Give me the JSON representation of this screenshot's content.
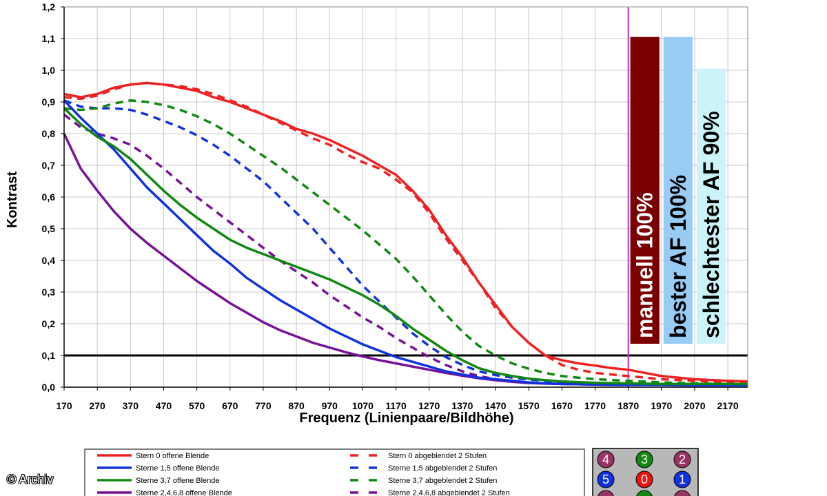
{
  "chart_data": {
    "type": "line",
    "xlabel": "Frequenz (Linienpaare/Bildhöhe)",
    "ylabel": "Kontrast",
    "xlim": [
      170,
      2230
    ],
    "ylim": [
      0,
      1.2
    ],
    "x_ticks": [
      "170",
      "270",
      "370",
      "470",
      "570",
      "670",
      "770",
      "870",
      "970",
      "1070",
      "1170",
      "1270",
      "1370",
      "1470",
      "1570",
      "1670",
      "1770",
      "1870",
      "1970",
      "2070",
      "2170"
    ],
    "y_ticks": [
      "0,0",
      "0,1",
      "0,2",
      "0,3",
      "0,4",
      "0,5",
      "0,6",
      "0,7",
      "0,8",
      "0,9",
      "1,0",
      "1,1",
      "1,2"
    ],
    "grid": true,
    "threshold_line": {
      "y": 0.1,
      "color": "#000000"
    },
    "marker_line": {
      "x": 1870,
      "color": "#cc33cc"
    },
    "bars": [
      {
        "label": "manuell 100%",
        "value": 1.105,
        "color": "#7a0000",
        "text_color": "#ffffff"
      },
      {
        "label": "bester AF 100%",
        "value": 1.105,
        "color": "#99ccf4",
        "text_color": "#000000"
      },
      {
        "label": "schlechtester AF 90%",
        "value": 1.005,
        "color": "#ccf4f8",
        "text_color": "#000000"
      }
    ],
    "series": [
      {
        "name": "Stern 0 offene Blende",
        "color": "#ee2222",
        "dash": false,
        "x": [
          170,
          220,
          270,
          320,
          370,
          420,
          470,
          520,
          570,
          620,
          670,
          720,
          770,
          820,
          870,
          920,
          970,
          1020,
          1070,
          1120,
          1170,
          1220,
          1270,
          1320,
          1370,
          1420,
          1470,
          1520,
          1570,
          1620,
          1670,
          1720,
          1770,
          1820,
          1870,
          1920,
          1970,
          2070,
          2170,
          2230
        ],
        "y": [
          0.925,
          0.915,
          0.925,
          0.945,
          0.955,
          0.96,
          0.955,
          0.945,
          0.935,
          0.915,
          0.9,
          0.88,
          0.86,
          0.84,
          0.815,
          0.8,
          0.78,
          0.755,
          0.73,
          0.7,
          0.67,
          0.62,
          0.56,
          0.48,
          0.41,
          0.33,
          0.26,
          0.19,
          0.14,
          0.1,
          0.085,
          0.075,
          0.068,
          0.06,
          0.055,
          0.045,
          0.035,
          0.025,
          0.02,
          0.018
        ]
      },
      {
        "name": "Sterne 1,5 offene Blende",
        "color": "#1133dd",
        "dash": false,
        "x": [
          170,
          220,
          270,
          320,
          370,
          420,
          470,
          520,
          570,
          620,
          670,
          720,
          770,
          820,
          870,
          920,
          970,
          1020,
          1070,
          1120,
          1170,
          1220,
          1270,
          1320,
          1370,
          1420,
          1470,
          1520,
          1570,
          1620,
          1670,
          1770,
          1870,
          1970,
          2070,
          2170,
          2230
        ],
        "y": [
          0.905,
          0.85,
          0.8,
          0.75,
          0.69,
          0.63,
          0.58,
          0.53,
          0.48,
          0.43,
          0.39,
          0.345,
          0.31,
          0.275,
          0.245,
          0.215,
          0.185,
          0.16,
          0.135,
          0.115,
          0.095,
          0.08,
          0.065,
          0.05,
          0.04,
          0.03,
          0.025,
          0.02,
          0.015,
          0.012,
          0.01,
          0.008,
          0.007,
          0.007,
          0.006,
          0.006,
          0.006
        ]
      },
      {
        "name": "Sterne 3,7 offene Blende",
        "color": "#118811",
        "dash": false,
        "x": [
          170,
          220,
          270,
          320,
          370,
          420,
          470,
          520,
          570,
          620,
          670,
          720,
          770,
          820,
          870,
          920,
          970,
          1020,
          1070,
          1120,
          1170,
          1220,
          1270,
          1320,
          1370,
          1420,
          1470,
          1520,
          1570,
          1620,
          1670,
          1770,
          1870,
          1970,
          2070,
          2170,
          2230
        ],
        "y": [
          0.88,
          0.83,
          0.79,
          0.76,
          0.72,
          0.67,
          0.62,
          0.575,
          0.535,
          0.5,
          0.465,
          0.44,
          0.42,
          0.4,
          0.38,
          0.36,
          0.34,
          0.315,
          0.29,
          0.26,
          0.225,
          0.185,
          0.15,
          0.115,
          0.085,
          0.06,
          0.045,
          0.035,
          0.027,
          0.022,
          0.018,
          0.014,
          0.012,
          0.01,
          0.01,
          0.01,
          0.01
        ]
      },
      {
        "name": "Sterne 2,4,6,8 offene Blende",
        "color": "#771199",
        "dash": false,
        "x": [
          170,
          220,
          270,
          320,
          370,
          420,
          470,
          520,
          570,
          620,
          670,
          720,
          770,
          820,
          870,
          920,
          970,
          1020,
          1070,
          1120,
          1170,
          1220,
          1270,
          1320,
          1370,
          1420,
          1470,
          1520,
          1570,
          1620,
          1670,
          1770,
          1870,
          1970,
          2070,
          2170,
          2230
        ],
        "y": [
          0.8,
          0.69,
          0.62,
          0.555,
          0.5,
          0.455,
          0.415,
          0.375,
          0.335,
          0.3,
          0.265,
          0.235,
          0.205,
          0.18,
          0.16,
          0.14,
          0.125,
          0.11,
          0.097,
          0.085,
          0.075,
          0.065,
          0.055,
          0.045,
          0.036,
          0.028,
          0.022,
          0.017,
          0.013,
          0.011,
          0.01,
          0.008,
          0.007,
          0.007,
          0.006,
          0.006,
          0.006
        ]
      },
      {
        "name": "Stern 0 abgeblendet 2 Stufen",
        "color": "#ee2222",
        "dash": true,
        "x": [
          170,
          220,
          270,
          320,
          370,
          420,
          470,
          520,
          570,
          620,
          670,
          720,
          770,
          820,
          870,
          920,
          970,
          1020,
          1070,
          1120,
          1170,
          1220,
          1270,
          1320,
          1370,
          1420,
          1470,
          1520,
          1570,
          1620,
          1670,
          1720,
          1770,
          1820,
          1870,
          1920,
          1970,
          2070,
          2170,
          2230
        ],
        "y": [
          0.915,
          0.91,
          0.92,
          0.94,
          0.955,
          0.96,
          0.955,
          0.95,
          0.94,
          0.925,
          0.905,
          0.885,
          0.86,
          0.835,
          0.81,
          0.785,
          0.765,
          0.735,
          0.71,
          0.69,
          0.655,
          0.615,
          0.55,
          0.47,
          0.4,
          0.33,
          0.25,
          0.19,
          0.14,
          0.1,
          0.07,
          0.055,
          0.045,
          0.04,
          0.035,
          0.03,
          0.025,
          0.02,
          0.015,
          0.015
        ]
      },
      {
        "name": "Sterne 1,5 abgeblendet 2 Stufen",
        "color": "#1133dd",
        "dash": true,
        "x": [
          170,
          220,
          270,
          320,
          370,
          420,
          470,
          520,
          570,
          620,
          670,
          720,
          770,
          820,
          870,
          920,
          970,
          1020,
          1070,
          1120,
          1170,
          1220,
          1270,
          1320,
          1370,
          1420,
          1470,
          1520,
          1570,
          1620,
          1670,
          1770,
          1870,
          1970,
          2070,
          2170,
          2230
        ],
        "y": [
          0.905,
          0.885,
          0.88,
          0.88,
          0.875,
          0.86,
          0.84,
          0.82,
          0.795,
          0.765,
          0.73,
          0.69,
          0.65,
          0.6,
          0.55,
          0.5,
          0.44,
          0.38,
          0.32,
          0.27,
          0.22,
          0.17,
          0.13,
          0.095,
          0.07,
          0.05,
          0.038,
          0.03,
          0.024,
          0.02,
          0.016,
          0.012,
          0.01,
          0.01,
          0.009,
          0.008,
          0.008
        ]
      },
      {
        "name": "Sterne 3,7 abgeblendet 2 Stufen",
        "color": "#118811",
        "dash": true,
        "x": [
          170,
          220,
          270,
          320,
          370,
          420,
          470,
          520,
          570,
          620,
          670,
          720,
          770,
          820,
          870,
          920,
          970,
          1020,
          1070,
          1120,
          1170,
          1220,
          1270,
          1320,
          1370,
          1420,
          1470,
          1520,
          1570,
          1620,
          1670,
          1770,
          1870,
          1970,
          2070,
          2170,
          2230
        ],
        "y": [
          0.88,
          0.875,
          0.88,
          0.895,
          0.905,
          0.9,
          0.89,
          0.875,
          0.855,
          0.83,
          0.8,
          0.765,
          0.73,
          0.695,
          0.655,
          0.615,
          0.575,
          0.535,
          0.495,
          0.45,
          0.405,
          0.35,
          0.29,
          0.23,
          0.175,
          0.13,
          0.1,
          0.075,
          0.058,
          0.045,
          0.035,
          0.025,
          0.02,
          0.015,
          0.012,
          0.01,
          0.01
        ]
      },
      {
        "name": "Sterne 2,4,6,8 abgeblendet 2 Stufen",
        "color": "#771199",
        "dash": true,
        "x": [
          170,
          220,
          270,
          320,
          370,
          420,
          470,
          520,
          570,
          620,
          670,
          720,
          770,
          820,
          870,
          920,
          970,
          1020,
          1070,
          1120,
          1170,
          1220,
          1270,
          1320,
          1370,
          1420,
          1470,
          1520,
          1570,
          1620,
          1670,
          1770,
          1870,
          1970,
          2070,
          2170,
          2230
        ],
        "y": [
          0.86,
          0.82,
          0.8,
          0.785,
          0.765,
          0.73,
          0.69,
          0.645,
          0.6,
          0.56,
          0.52,
          0.48,
          0.44,
          0.4,
          0.365,
          0.33,
          0.29,
          0.255,
          0.22,
          0.19,
          0.155,
          0.125,
          0.095,
          0.07,
          0.05,
          0.035,
          0.025,
          0.018,
          0.014,
          0.012,
          0.01,
          0.009,
          0.008,
          0.007,
          0.007,
          0.006,
          0.006
        ]
      }
    ],
    "legend_entries": [
      {
        "label": "Stern 0 offene Blende",
        "color": "#ee2222",
        "dash": false
      },
      {
        "label": "Sterne 1,5 offene Blende",
        "color": "#1133dd",
        "dash": false
      },
      {
        "label": "Sterne 3,7 offene Blende",
        "color": "#118811",
        "dash": false
      },
      {
        "label": "Sterne 2,4,6,8 offene Blende",
        "color": "#771199",
        "dash": false
      },
      {
        "label": "Stern 0 abgeblendet 2 Stufen",
        "color": "#ee2222",
        "dash": true
      },
      {
        "label": "Sterne 1,5 abgeblendet 2 Stufen",
        "color": "#1133dd",
        "dash": true
      },
      {
        "label": "Sterne 3,7 abgeblendet 2 Stufen",
        "color": "#118811",
        "dash": true
      },
      {
        "label": "Sterne 2,4,6,8 abgeblendet 2 Stufen",
        "color": "#771199",
        "dash": true
      }
    ],
    "star_badges": [
      {
        "label": "4",
        "color": "#993366"
      },
      {
        "label": "3",
        "color": "#118811"
      },
      {
        "label": "2",
        "color": "#993366"
      },
      {
        "label": "5",
        "color": "#1133dd"
      },
      {
        "label": "0",
        "color": "#ee1111"
      },
      {
        "label": "1",
        "color": "#1133dd"
      },
      {
        "label": "",
        "color": "#993366"
      },
      {
        "label": "",
        "color": "#118811"
      },
      {
        "label": "",
        "color": "#993366"
      }
    ]
  },
  "copyright": "© Archiv"
}
